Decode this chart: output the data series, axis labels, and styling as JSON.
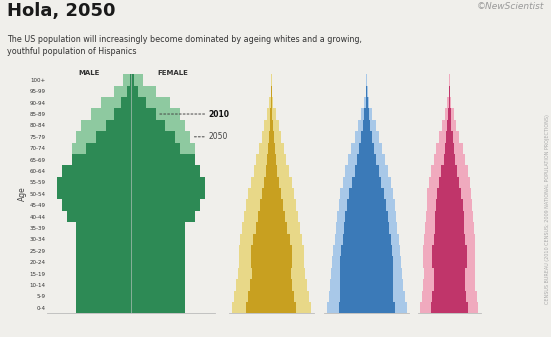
{
  "title": "Hola, 2050",
  "subtitle": "The US population will increasingly become dominated by ageing whites and a growing,\nyouthful population of Hispanics",
  "credit": "©NewScientist",
  "source_right": "CENSUS BUREAU (2010 CENSUS; 2009 NATIONAL POPULATION PROJECTIONS)",
  "age_labels": [
    "0-4",
    "5-9",
    "10-14",
    "15-19",
    "20-24",
    "25-29",
    "30-34",
    "35-39",
    "40-44",
    "45-49",
    "50-54",
    "55-59",
    "60-64",
    "65-69",
    "70-74",
    "75-79",
    "80-84",
    "85-89",
    "90-94",
    "95-99",
    "100+"
  ],
  "white_2010_male": [
    11,
    11,
    11,
    11,
    11,
    11,
    11,
    11,
    13,
    14,
    15,
    15,
    14,
    12,
    9,
    7,
    5,
    3.5,
    2,
    0.8,
    0.2
  ],
  "white_2010_female": [
    11,
    11,
    11,
    11,
    11,
    11,
    11,
    11,
    13,
    14,
    15,
    15,
    14,
    13,
    10,
    9,
    7,
    5,
    3,
    1.5,
    0.6
  ],
  "white_2050_male": [
    9,
    9,
    9,
    9,
    10,
    10,
    10,
    10,
    10,
    10,
    11,
    12,
    12,
    12,
    12,
    11,
    10,
    8,
    6,
    3.5,
    1.5
  ],
  "white_2050_female": [
    9,
    9,
    9,
    9,
    10,
    10,
    10,
    10,
    10,
    10,
    11,
    12,
    12,
    13,
    13,
    12,
    11,
    10,
    8,
    5,
    2.5
  ],
  "hispanic_2010": [
    3.8,
    3.5,
    3.2,
    3.0,
    3.1,
    3.1,
    2.8,
    2.4,
    2.0,
    1.7,
    1.4,
    1.1,
    0.85,
    0.65,
    0.48,
    0.35,
    0.25,
    0.14,
    0.06,
    0.025,
    0.008
  ],
  "hispanic_2050": [
    6.0,
    5.7,
    5.4,
    5.1,
    5.0,
    4.9,
    4.7,
    4.4,
    4.1,
    3.8,
    3.5,
    3.1,
    2.7,
    2.3,
    1.9,
    1.5,
    1.1,
    0.65,
    0.32,
    0.12,
    0.035
  ],
  "black_2010": [
    2.1,
    2.0,
    2.0,
    2.0,
    2.0,
    1.9,
    1.8,
    1.7,
    1.6,
    1.45,
    1.3,
    1.1,
    0.9,
    0.72,
    0.55,
    0.4,
    0.28,
    0.17,
    0.08,
    0.03,
    0.008
  ],
  "black_2050": [
    3.0,
    2.85,
    2.75,
    2.65,
    2.6,
    2.5,
    2.4,
    2.3,
    2.2,
    2.1,
    2.0,
    1.8,
    1.6,
    1.4,
    1.15,
    0.9,
    0.68,
    0.42,
    0.21,
    0.08,
    0.02
  ],
  "asian_2010": [
    0.72,
    0.67,
    0.62,
    0.62,
    0.68,
    0.68,
    0.62,
    0.57,
    0.57,
    0.52,
    0.47,
    0.39,
    0.31,
    0.23,
    0.175,
    0.125,
    0.082,
    0.05,
    0.022,
    0.009,
    0.003
  ],
  "asian_2050": [
    1.15,
    1.08,
    1.03,
    1.01,
    1.03,
    1.03,
    1.0,
    0.97,
    0.94,
    0.9,
    0.87,
    0.8,
    0.72,
    0.62,
    0.52,
    0.4,
    0.28,
    0.17,
    0.075,
    0.028,
    0.007
  ],
  "color_white_2010": "#2d8a55",
  "color_white_2050": "#8ec9a0",
  "color_hispanic_2010": "#c8a020",
  "color_hispanic_2050": "#e8d888",
  "color_black_2010": "#3b7ab8",
  "color_black_2050": "#a8c8e8",
  "color_asian_2010": "#c0356a",
  "color_asian_2050": "#f0aabe",
  "bg_color": "#f0efeb"
}
